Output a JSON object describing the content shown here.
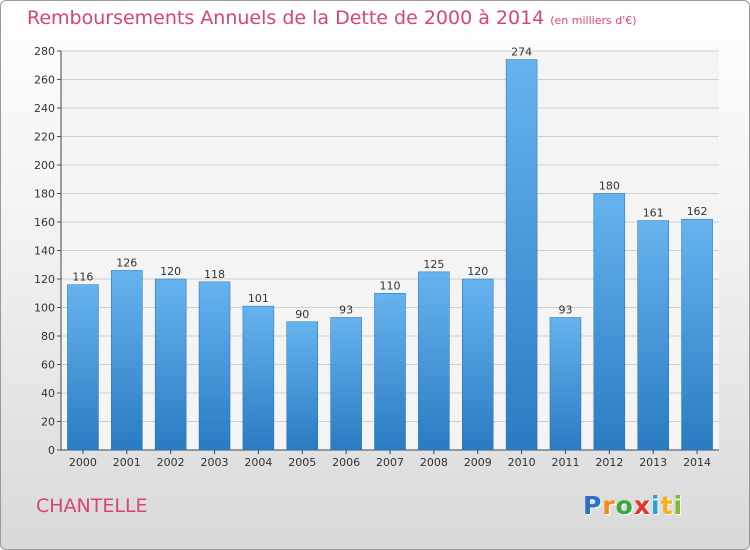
{
  "chart_data": {
    "type": "bar",
    "title": "Remboursements Annuels de la Dette de 2000 à 2014",
    "unit": "(en milliers d'€)",
    "categories": [
      "2000",
      "2001",
      "2002",
      "2003",
      "2004",
      "2005",
      "2006",
      "2007",
      "2008",
      "2009",
      "2010",
      "2011",
      "2012",
      "2013",
      "2014"
    ],
    "values": [
      116,
      126,
      120,
      118,
      101,
      90,
      93,
      110,
      125,
      120,
      274,
      93,
      180,
      161,
      162
    ],
    "ylim": [
      0,
      280
    ],
    "yticks": [
      0,
      20,
      40,
      60,
      80,
      100,
      120,
      140,
      160,
      180,
      200,
      220,
      240,
      260,
      280
    ],
    "xlabel": "",
    "ylabel": "",
    "grid": true,
    "bar_color": "#3a8fd6"
  },
  "footer": {
    "place_name": "CHANTELLE"
  },
  "logo": {
    "letters": [
      "P",
      "r",
      "o",
      "x",
      "i",
      "t",
      "i"
    ],
    "colors": [
      "#2a6fc9",
      "#f28c1a",
      "#3aa838",
      "#e0352b",
      "#2a9fd8",
      "#f2b01a",
      "#7bbf2a"
    ]
  }
}
